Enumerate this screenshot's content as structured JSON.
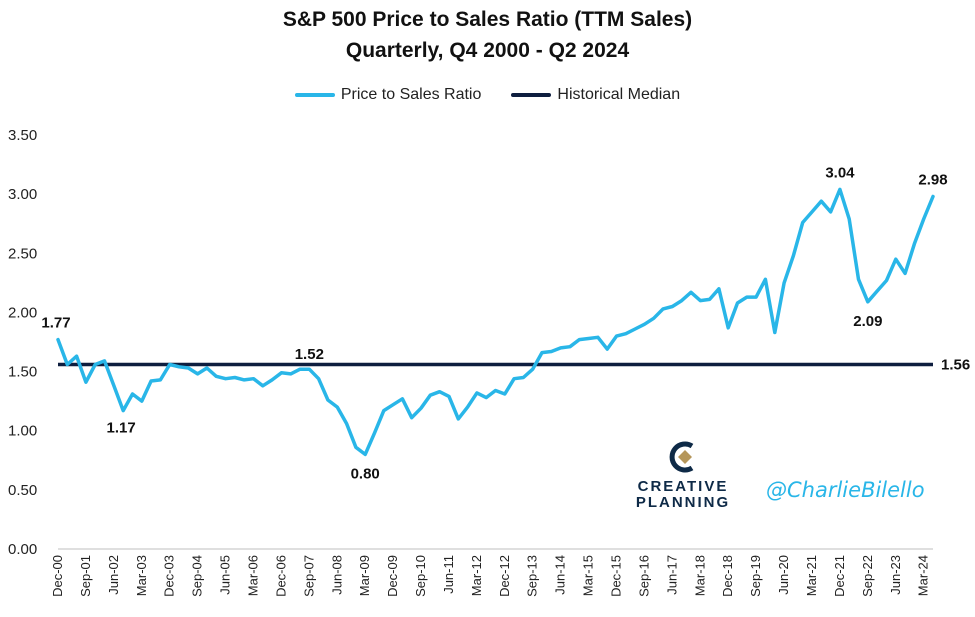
{
  "title": "S&P 500 Price to Sales Ratio (TTM Sales)",
  "subtitle": "Quarterly, Q4 2000 - Q2 2024",
  "brand": {
    "logo": "creative-planning-logo",
    "name_line1": "CREATIVE",
    "name_line2": "PLANNING",
    "handle": "@CharlieBilello"
  },
  "colors": {
    "series": "#29b6e8",
    "median": "#0e1e3f",
    "brand": "#0e2a47",
    "handle": "#29b6e8"
  },
  "chart_data": {
    "type": "line",
    "x": [
      "Dec-00",
      "Mar-01",
      "Jun-01",
      "Sep-01",
      "Dec-01",
      "Mar-02",
      "Jun-02",
      "Sep-02",
      "Dec-02",
      "Mar-03",
      "Jun-03",
      "Sep-03",
      "Dec-03",
      "Mar-04",
      "Jun-04",
      "Sep-04",
      "Dec-04",
      "Mar-05",
      "Jun-05",
      "Sep-05",
      "Dec-05",
      "Mar-06",
      "Jun-06",
      "Sep-06",
      "Dec-06",
      "Mar-07",
      "Jun-07",
      "Sep-07",
      "Dec-07",
      "Mar-08",
      "Jun-08",
      "Sep-08",
      "Dec-08",
      "Mar-09",
      "Jun-09",
      "Sep-09",
      "Dec-09",
      "Mar-10",
      "Jun-10",
      "Sep-10",
      "Dec-10",
      "Mar-11",
      "Jun-11",
      "Sep-11",
      "Dec-11",
      "Mar-12",
      "Jun-12",
      "Sep-12",
      "Dec-12",
      "Mar-13",
      "Jun-13",
      "Sep-13",
      "Dec-13",
      "Mar-14",
      "Jun-14",
      "Sep-14",
      "Dec-14",
      "Mar-15",
      "Jun-15",
      "Sep-15",
      "Dec-15",
      "Mar-16",
      "Jun-16",
      "Sep-16",
      "Dec-16",
      "Mar-17",
      "Jun-17",
      "Sep-17",
      "Dec-17",
      "Mar-18",
      "Jun-18",
      "Sep-18",
      "Dec-18",
      "Mar-19",
      "Jun-19",
      "Sep-19",
      "Dec-19",
      "Mar-20",
      "Jun-20",
      "Sep-20",
      "Dec-20",
      "Mar-21",
      "Jun-21",
      "Sep-21",
      "Dec-21",
      "Mar-22",
      "Jun-22",
      "Sep-22",
      "Dec-22",
      "Mar-23",
      "Jun-23",
      "Sep-23",
      "Dec-23",
      "Mar-24",
      "Jun-24"
    ],
    "xtick_labels": [
      "Dec-00",
      "Sep-01",
      "Jun-02",
      "Mar-03",
      "Dec-03",
      "Sep-04",
      "Jun-05",
      "Mar-06",
      "Dec-06",
      "Sep-07",
      "Jun-08",
      "Mar-09",
      "Dec-09",
      "Sep-10",
      "Jun-11",
      "Mar-12",
      "Dec-12",
      "Sep-13",
      "Jun-14",
      "Mar-15",
      "Dec-15",
      "Sep-16",
      "Jun-17",
      "Mar-18",
      "Dec-18",
      "Sep-19",
      "Jun-20",
      "Mar-21",
      "Dec-21",
      "Sep-22",
      "Jun-23",
      "Mar-24"
    ],
    "series": [
      {
        "name": "Price to Sales Ratio",
        "color": "#29b6e8",
        "values": [
          1.77,
          1.56,
          1.63,
          1.41,
          1.56,
          1.59,
          1.38,
          1.17,
          1.31,
          1.25,
          1.42,
          1.43,
          1.56,
          1.54,
          1.53,
          1.48,
          1.53,
          1.46,
          1.44,
          1.45,
          1.43,
          1.44,
          1.38,
          1.43,
          1.49,
          1.48,
          1.52,
          1.52,
          1.44,
          1.26,
          1.2,
          1.06,
          0.86,
          0.8,
          0.98,
          1.17,
          1.22,
          1.27,
          1.11,
          1.19,
          1.3,
          1.33,
          1.29,
          1.1,
          1.2,
          1.32,
          1.28,
          1.34,
          1.31,
          1.44,
          1.45,
          1.52,
          1.66,
          1.67,
          1.7,
          1.71,
          1.77,
          1.78,
          1.79,
          1.69,
          1.8,
          1.82,
          1.86,
          1.9,
          1.95,
          2.03,
          2.05,
          2.1,
          2.17,
          2.1,
          2.11,
          2.2,
          1.87,
          2.08,
          2.13,
          2.13,
          2.28,
          1.83,
          2.25,
          2.48,
          2.76,
          2.85,
          2.94,
          2.85,
          3.04,
          2.79,
          2.28,
          2.09,
          2.18,
          2.27,
          2.45,
          2.33,
          2.58,
          2.79,
          2.98
        ]
      },
      {
        "name": "Historical Median",
        "color": "#0e1e3f",
        "value": 1.56
      }
    ],
    "data_labels": [
      {
        "index": 0,
        "text": "1.77"
      },
      {
        "index": 7,
        "text": "1.17"
      },
      {
        "index": 27,
        "text": "1.52"
      },
      {
        "index": 33,
        "text": "0.80"
      },
      {
        "index": 84,
        "text": "3.04"
      },
      {
        "index": 87,
        "text": "2.09"
      },
      {
        "index": 94,
        "text": "2.98"
      }
    ],
    "median_label": "1.56",
    "yticks": [
      "0.00",
      "0.50",
      "1.00",
      "1.50",
      "2.00",
      "2.50",
      "3.00",
      "3.50"
    ],
    "ylim": [
      0,
      3.5
    ],
    "grid": false,
    "legend": "top-center"
  }
}
